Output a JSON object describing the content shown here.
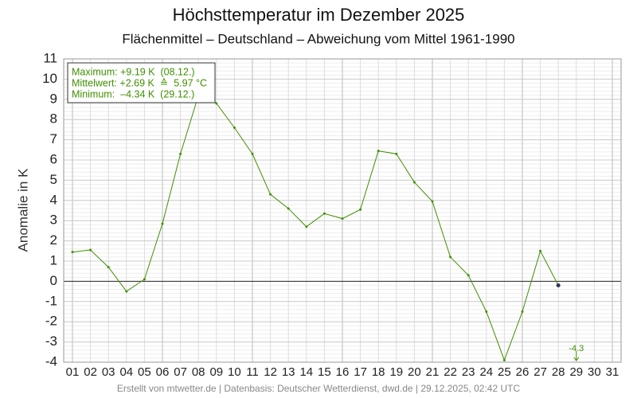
{
  "chart_data": {
    "type": "line",
    "title": "Höchsttemperatur im Dezember 2025",
    "subtitle": "Flächenmittel – Deutschland – Abweichung vom Mittel 1961-1990",
    "y_label": "Anomalie in K",
    "footer": "Erstellt von mtwetter.de | Datenbasis: Deutscher Wetterdienst, dwd.de | 29.12.2025, 02:42 UTC",
    "annotations": [
      "Maximum: +9.19 K  (08.12.)",
      "Mittelwert: +2.69 K  ≙  5.97 °C",
      "Minimum:  –4.34 K  (29.12.)"
    ],
    "categories": [
      "01",
      "02",
      "03",
      "04",
      "05",
      "06",
      "07",
      "08",
      "09",
      "10",
      "11",
      "12",
      "13",
      "14",
      "15",
      "16",
      "17",
      "18",
      "19",
      "20",
      "21",
      "22",
      "23",
      "24",
      "25",
      "26",
      "27",
      "28",
      "29",
      "30",
      "31"
    ],
    "color": "#3f8f00",
    "values": [
      1.45,
      1.55,
      0.7,
      -0.5,
      0.1,
      2.85,
      6.3,
      9.19,
      8.8,
      7.6,
      6.3,
      4.3,
      3.6,
      2.7,
      3.35,
      3.1,
      3.55,
      6.45,
      6.3,
      4.9,
      3.95,
      1.2,
      0.3,
      -1.5,
      -3.9,
      -1.5,
      1.5,
      -0.2,
      -4.34,
      null,
      null
    ],
    "value_labels": [
      null,
      null,
      null,
      null,
      null,
      null,
      null,
      null,
      null,
      null,
      null,
      null,
      null,
      null,
      null,
      null,
      null,
      null,
      null,
      null,
      null,
      null,
      null,
      null,
      null,
      null,
      null,
      null,
      "-4.3",
      null,
      null
    ],
    "ylim": [
      -4,
      11
    ],
    "yticks": [
      -4,
      -3,
      -2,
      -1,
      0,
      1,
      2,
      3,
      4,
      5,
      6,
      7,
      8,
      9,
      10,
      11
    ],
    "grid": true
  }
}
